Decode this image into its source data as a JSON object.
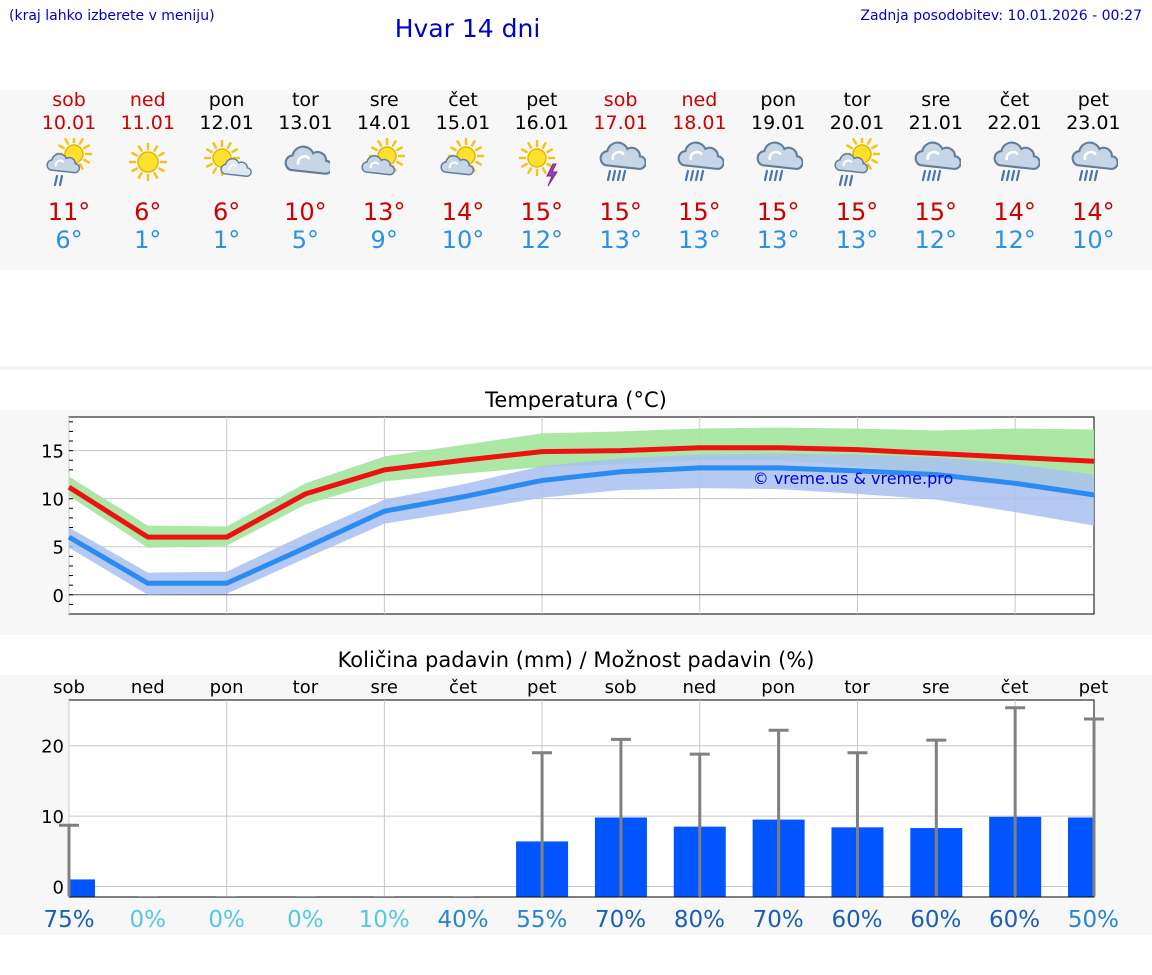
{
  "header": {
    "hint": "(kraj lahko izberete v meniju)",
    "title": "Hvar 14 dni",
    "updated": "Zadnja posodobitev: 10.01.2026 - 00:27"
  },
  "colors": {
    "max_temp": "#cc0000",
    "min_temp": "#2b90e8",
    "max_line": "#ee1111",
    "min_line": "#2a8cf2",
    "max_band": "#a8e6a0",
    "min_band": "#a8c0f0",
    "overlap_band": "#6cbfa8",
    "precip_bar": "#0055ff",
    "error_bar": "#808080"
  },
  "days": [
    {
      "name": "sob",
      "date": "10.01",
      "weekend": true,
      "icon": "partly-cloudy-light-rain-icon",
      "max": "11°",
      "min": "6°"
    },
    {
      "name": "ned",
      "date": "11.01",
      "weekend": true,
      "icon": "sun-icon",
      "max": "6°",
      "min": "1°"
    },
    {
      "name": "pon",
      "date": "12.01",
      "weekend": false,
      "icon": "sun-small-cloud-icon",
      "max": "6°",
      "min": "1°"
    },
    {
      "name": "tor",
      "date": "13.01",
      "weekend": false,
      "icon": "cloudy-icon",
      "max": "10°",
      "min": "5°"
    },
    {
      "name": "sre",
      "date": "14.01",
      "weekend": false,
      "icon": "partly-cloudy-icon",
      "max": "13°",
      "min": "9°"
    },
    {
      "name": "čet",
      "date": "15.01",
      "weekend": false,
      "icon": "partly-cloudy-icon",
      "max": "14°",
      "min": "10°"
    },
    {
      "name": "pet",
      "date": "16.01",
      "weekend": false,
      "icon": "sun-thunder-icon",
      "max": "15°",
      "min": "12°"
    },
    {
      "name": "sob",
      "date": "17.01",
      "weekend": true,
      "icon": "cloud-rain-icon",
      "max": "15°",
      "min": "13°"
    },
    {
      "name": "ned",
      "date": "18.01",
      "weekend": true,
      "icon": "cloud-rain-icon",
      "max": "15°",
      "min": "13°"
    },
    {
      "name": "pon",
      "date": "19.01",
      "weekend": false,
      "icon": "cloud-rain-icon",
      "max": "15°",
      "min": "13°"
    },
    {
      "name": "tor",
      "date": "20.01",
      "weekend": false,
      "icon": "partly-cloudy-rain-icon",
      "max": "15°",
      "min": "13°"
    },
    {
      "name": "sre",
      "date": "21.01",
      "weekend": false,
      "icon": "cloud-rain-icon",
      "max": "15°",
      "min": "12°"
    },
    {
      "name": "čet",
      "date": "22.01",
      "weekend": false,
      "icon": "cloud-rain-icon",
      "max": "14°",
      "min": "12°"
    },
    {
      "name": "pet",
      "date": "23.01",
      "weekend": false,
      "icon": "cloud-rain-icon",
      "max": "14°",
      "min": "10°"
    }
  ],
  "chart_data": [
    {
      "type": "line",
      "title": "Temperatura (°C)",
      "xlabel": "",
      "ylabel": "",
      "ylim": [
        -2,
        18.5
      ],
      "yticks": [
        0,
        5,
        10,
        15
      ],
      "grid": true,
      "watermark": "© vreme.us & vreme.pro",
      "x": [
        0,
        1,
        2,
        3,
        4,
        5,
        6,
        7,
        8,
        9,
        10,
        11,
        12,
        13
      ],
      "series": [
        {
          "name": "max",
          "values": [
            11.2,
            6.0,
            6.0,
            10.5,
            13.0,
            14.0,
            14.9,
            15.0,
            15.3,
            15.3,
            15.1,
            14.7,
            14.3,
            13.9
          ],
          "band_low": [
            10.3,
            4.9,
            5.1,
            9.4,
            11.8,
            12.6,
            13.3,
            13.6,
            14.0,
            14.0,
            13.4,
            12.5,
            11.6,
            10.8
          ],
          "band_high": [
            12.3,
            7.2,
            7.1,
            11.6,
            14.4,
            15.6,
            16.8,
            17.0,
            17.3,
            17.4,
            17.3,
            17.1,
            17.3,
            17.2
          ]
        },
        {
          "name": "min",
          "values": [
            6.0,
            1.2,
            1.2,
            4.9,
            8.7,
            10.2,
            11.9,
            12.8,
            13.2,
            13.2,
            12.9,
            12.5,
            11.6,
            10.4
          ],
          "band_low": [
            4.9,
            0.0,
            0.1,
            3.8,
            7.4,
            8.7,
            10.1,
            10.9,
            11.1,
            11.0,
            10.5,
            9.9,
            8.6,
            7.2
          ],
          "band_high": [
            7.0,
            2.3,
            2.4,
            6.3,
            9.9,
            11.5,
            13.4,
            14.2,
            14.6,
            14.7,
            14.6,
            14.3,
            13.6,
            12.5
          ]
        }
      ]
    },
    {
      "type": "bar",
      "title": "Količina padavin (mm) / Možnost padavin (%)",
      "xlabel": "",
      "ylabel": "",
      "ylim": [
        -1.5,
        26.5
      ],
      "yticks": [
        0,
        10,
        20
      ],
      "grid": true,
      "categories": [
        "sob",
        "ned",
        "pon",
        "tor",
        "sre",
        "čet",
        "pet",
        "sob",
        "ned",
        "pon",
        "tor",
        "sre",
        "čet",
        "pet"
      ],
      "values": [
        1.0,
        0.0,
        0.0,
        0.0,
        0.0,
        0.0,
        6.4,
        9.8,
        8.5,
        9.5,
        8.4,
        8.3,
        9.9,
        9.8
      ],
      "error_max": [
        8.7,
        0.0,
        0.0,
        0.0,
        0.0,
        0.0,
        19.0,
        20.9,
        18.8,
        22.2,
        19.0,
        20.8,
        25.4,
        23.8
      ],
      "probability_labels": [
        "75%",
        "0%",
        "0%",
        "0%",
        "10%",
        "40%",
        "55%",
        "70%",
        "80%",
        "70%",
        "60%",
        "60%",
        "60%",
        "50%"
      ]
    }
  ]
}
